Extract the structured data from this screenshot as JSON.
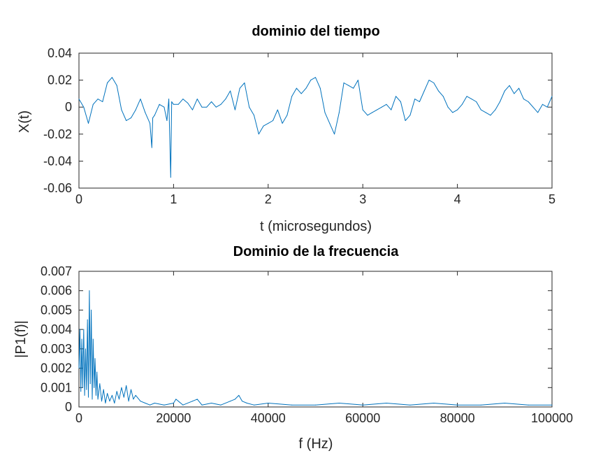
{
  "colors": {
    "series": "#0072bd",
    "axes": "#262626",
    "background": "#ffffff"
  },
  "chart_data": [
    {
      "type": "line",
      "title": "dominio del tiempo",
      "xlabel": "t (microsegundos)",
      "ylabel": "X(t)",
      "xlim": [
        0,
        5
      ],
      "ylim": [
        -0.06,
        0.04
      ],
      "xticks": [
        0,
        1,
        2,
        3,
        4,
        5
      ],
      "xtick_labels": [
        "0",
        "1",
        "2",
        "3",
        "4",
        "5"
      ],
      "yticks": [
        -0.06,
        -0.04,
        -0.02,
        0,
        0.02,
        0.04
      ],
      "ytick_labels": [
        "-0.06",
        "-0.04",
        "-0.02",
        "0",
        "0.02",
        "0.04"
      ],
      "grid": false,
      "series": [
        {
          "x": [
            0,
            0.05,
            0.1,
            0.15,
            0.2,
            0.25,
            0.3,
            0.35,
            0.4,
            0.45,
            0.5,
            0.55,
            0.6,
            0.65,
            0.7,
            0.75,
            0.77,
            0.78,
            0.8,
            0.85,
            0.9,
            0.93,
            0.95,
            0.97,
            0.98,
            1.0,
            1.05,
            1.1,
            1.15,
            1.2,
            1.25,
            1.3,
            1.35,
            1.4,
            1.45,
            1.5,
            1.55,
            1.6,
            1.65,
            1.7,
            1.75,
            1.8,
            1.85,
            1.9,
            1.95,
            2.0,
            2.05,
            2.1,
            2.15,
            2.2,
            2.25,
            2.3,
            2.35,
            2.4,
            2.45,
            2.5,
            2.55,
            2.6,
            2.65,
            2.7,
            2.75,
            2.8,
            2.85,
            2.9,
            2.95,
            3.0,
            3.05,
            3.1,
            3.15,
            3.2,
            3.25,
            3.3,
            3.35,
            3.4,
            3.45,
            3.5,
            3.55,
            3.6,
            3.65,
            3.7,
            3.75,
            3.8,
            3.85,
            3.9,
            3.95,
            4.0,
            4.05,
            4.1,
            4.15,
            4.2,
            4.25,
            4.3,
            4.35,
            4.4,
            4.45,
            4.5,
            4.55,
            4.6,
            4.65,
            4.7,
            4.75,
            4.8,
            4.85,
            4.9,
            4.95,
            5.0
          ],
          "y": [
            0.006,
            0.0,
            -0.012,
            0.002,
            0.006,
            0.004,
            0.018,
            0.022,
            0.016,
            -0.002,
            -0.01,
            -0.008,
            -0.002,
            0.006,
            -0.004,
            -0.012,
            -0.03,
            -0.008,
            -0.006,
            0.002,
            0.0,
            -0.01,
            0.006,
            -0.052,
            0.004,
            0.002,
            0.002,
            0.006,
            0.003,
            -0.002,
            0.006,
            0.0,
            0.0,
            0.004,
            0.0,
            0.002,
            0.006,
            0.012,
            -0.002,
            0.014,
            0.018,
            0.0,
            -0.006,
            -0.02,
            -0.014,
            -0.012,
            -0.01,
            -0.002,
            -0.012,
            -0.006,
            0.008,
            0.014,
            0.01,
            0.014,
            0.02,
            0.022,
            0.014,
            -0.004,
            -0.012,
            -0.02,
            -0.004,
            0.018,
            0.016,
            0.014,
            0.02,
            -0.002,
            -0.006,
            -0.004,
            -0.002,
            0.0,
            0.002,
            -0.002,
            0.008,
            0.004,
            -0.01,
            -0.006,
            0.006,
            0.004,
            0.012,
            0.02,
            0.018,
            0.012,
            0.008,
            0.0,
            -0.004,
            -0.002,
            0.002,
            0.008,
            0.006,
            0.004,
            -0.002,
            -0.004,
            -0.006,
            -0.002,
            0.004,
            0.012,
            0.016,
            0.01,
            0.014,
            0.006,
            0.004,
            0.0,
            -0.004,
            0.002,
            0.0,
            0.008
          ]
        }
      ]
    },
    {
      "type": "line",
      "title": "Dominio de la frecuencia",
      "xlabel": "f (Hz)",
      "ylabel": "|P1(f)|",
      "xlim": [
        0,
        100000
      ],
      "ylim": [
        0,
        0.007
      ],
      "xticks": [
        0,
        20000,
        40000,
        60000,
        80000,
        100000
      ],
      "xtick_labels": [
        "0",
        "20000",
        "40000",
        "60000",
        "80000",
        "100000"
      ],
      "yticks": [
        0,
        0.001,
        0.002,
        0.003,
        0.004,
        0.005,
        0.006,
        0.007
      ],
      "ytick_labels": [
        "0",
        "0.001",
        "0.002",
        "0.003",
        "0.004",
        "0.005",
        "0.006",
        "0.007"
      ],
      "grid": false,
      "series": [
        {
          "x": [
            0,
            200,
            400,
            600,
            800,
            1000,
            1200,
            1400,
            1600,
            1800,
            2000,
            2200,
            2400,
            2600,
            2800,
            3000,
            3200,
            3400,
            3600,
            3800,
            4000,
            4400,
            4800,
            5200,
            5600,
            6000,
            6500,
            7000,
            7500,
            8000,
            8500,
            9000,
            9500,
            10000,
            10500,
            11000,
            11500,
            12000,
            13000,
            14000,
            15000,
            16000,
            18000,
            20000,
            20500,
            22000,
            24000,
            25000,
            26000,
            28000,
            30000,
            32000,
            33000,
            33800,
            34500,
            35500,
            37000,
            40000,
            45000,
            50000,
            55000,
            60000,
            65000,
            70000,
            75000,
            80000,
            85000,
            90000,
            95000,
            100000
          ],
          "y": [
            0.002,
            0.004,
            0.0008,
            0.0035,
            0.001,
            0.004,
            0.0006,
            0.003,
            0.0009,
            0.0045,
            0.0005,
            0.006,
            0.0012,
            0.005,
            0.0004,
            0.0035,
            0.001,
            0.0025,
            0.0006,
            0.0018,
            0.0004,
            0.0012,
            0.0003,
            0.0009,
            0.0002,
            0.0007,
            0.0003,
            0.0006,
            0.0002,
            0.0008,
            0.0004,
            0.001,
            0.0005,
            0.0011,
            0.0003,
            0.0009,
            0.0004,
            0.0006,
            0.0003,
            0.0002,
            0.0001,
            0.0002,
            0.0001,
            0.0002,
            0.0004,
            0.0001,
            0.0003,
            0.0004,
            0.0001,
            0.0002,
            0.0001,
            0.0003,
            0.0004,
            0.0006,
            0.0003,
            0.0002,
            0.0001,
            0.0002,
            0.0001,
            0.0001,
            0.0002,
            0.0001,
            0.0002,
            0.0001,
            0.0002,
            0.0001,
            0.0001,
            0.0002,
            0.0001,
            0.0001
          ]
        }
      ]
    }
  ]
}
